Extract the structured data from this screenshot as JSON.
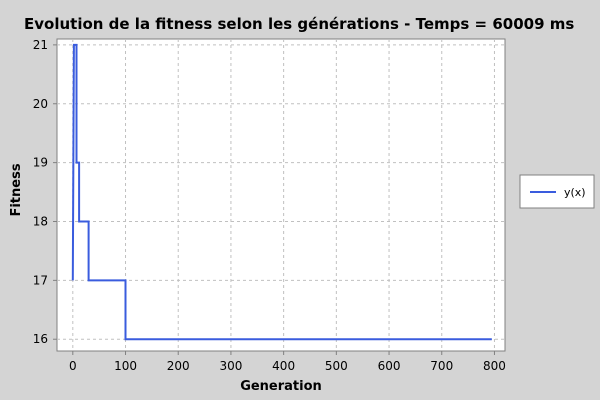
{
  "chart_data": {
    "type": "line",
    "title": "Evolution de la fitness selon les générations - Temps = 60009 ms",
    "xlabel": "Generation",
    "ylabel": "Fitness",
    "xlim": [
      -30,
      820
    ],
    "ylim": [
      15.8,
      21.1
    ],
    "xticks": [
      0,
      100,
      200,
      300,
      400,
      500,
      600,
      700,
      800
    ],
    "yticks": [
      16,
      17,
      18,
      19,
      20,
      21
    ],
    "grid": true,
    "legend_position": "right",
    "series": [
      {
        "name": "y(x)",
        "color": "#3a5cde",
        "x": [
          0,
          2,
          2,
          7,
          7,
          12,
          12,
          30,
          30,
          100,
          100,
          795
        ],
        "y": [
          17,
          21,
          21,
          21,
          19,
          19,
          18,
          18,
          17,
          17,
          16,
          16
        ]
      }
    ]
  }
}
